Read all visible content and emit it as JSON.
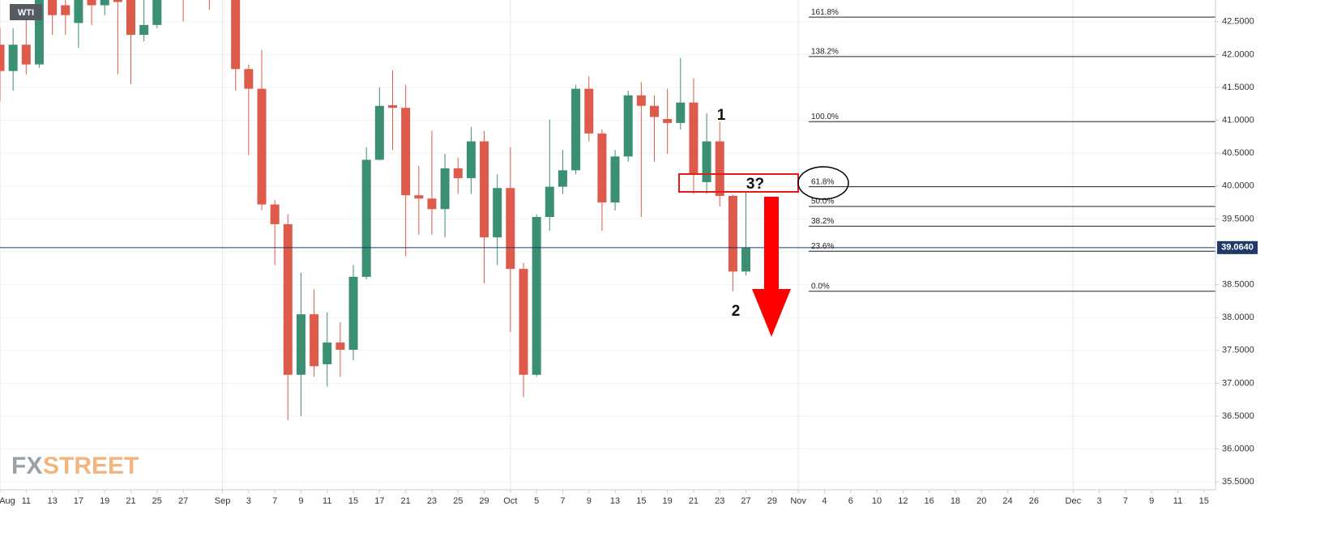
{
  "chart_data": {
    "type": "candlestick",
    "title": "WTI",
    "logo": [
      "FX",
      "STREET"
    ],
    "categories": [
      "Aug",
      null,
      "11",
      null,
      "13",
      null,
      "17",
      null,
      "19",
      null,
      "21",
      null,
      "25",
      null,
      "27",
      null,
      null,
      "Sep",
      null,
      "3",
      null,
      "7",
      null,
      "9",
      null,
      "11",
      null,
      "15",
      null,
      "17",
      null,
      "21",
      null,
      "23",
      null,
      "25",
      null,
      "29",
      null,
      "Oct",
      null,
      "5",
      null,
      "7",
      null,
      "9",
      null,
      "13",
      null,
      "15",
      null,
      "19",
      null,
      "21",
      null,
      "23",
      null,
      "27",
      null,
      "29",
      null,
      "Nov",
      null,
      "4",
      null,
      "6",
      null,
      "10",
      null,
      "12",
      null,
      "16",
      null,
      "18",
      null,
      "20",
      null,
      "24",
      null,
      "26",
      null,
      null,
      "Dec",
      null,
      "3",
      null,
      "7",
      null,
      "9",
      null,
      "11",
      null,
      "15"
    ],
    "series": {
      "open": [
        42.15,
        41.75,
        42.15,
        41.85,
        43.0,
        42.75,
        42.48,
        42.9,
        42.75,
        42.9,
        43.0,
        42.3,
        42.45,
        null,
        43.2,
        null,
        43.1,
        null,
        43.2,
        41.78,
        41.48,
        39.72,
        39.42,
        37.13,
        38.05,
        37.29,
        37.62,
        37.51,
        38.62,
        40.4,
        41.23,
        41.19,
        39.86,
        39.81,
        39.65,
        40.27,
        40.12,
        40.68,
        39.22,
        39.97,
        38.74,
        37.13,
        39.53,
        39.99,
        40.24,
        41.48,
        40.8,
        39.75,
        40.45,
        41.38,
        41.22,
        41.02,
        40.96,
        41.27,
        40.06,
        40.68,
        39.85,
        38.7,
        null,
        null,
        null,
        null,
        null,
        null,
        null,
        null,
        null,
        null,
        null,
        null,
        null,
        null,
        null,
        null,
        null,
        null,
        null,
        null,
        null,
        null,
        null,
        null,
        null,
        null,
        null,
        null,
        null,
        null,
        null,
        null,
        null,
        null,
        null
      ],
      "high": [
        42.4,
        42.4,
        42.59,
        43.1,
        43.1,
        43.0,
        43.2,
        43.1,
        43.0,
        43.1,
        43.1,
        42.9,
        43.1,
        null,
        43.4,
        null,
        43.3,
        null,
        43.3,
        41.85,
        42.07,
        39.79,
        39.57,
        38.68,
        38.43,
        38.08,
        37.93,
        38.8,
        40.59,
        41.5,
        41.76,
        41.54,
        40.31,
        40.84,
        40.49,
        40.43,
        40.9,
        40.84,
        40.18,
        40.59,
        38.83,
        39.57,
        41.01,
        40.55,
        41.54,
        41.67,
        40.86,
        40.55,
        41.45,
        41.58,
        41.38,
        41.48,
        41.95,
        41.64,
        41.11,
        40.98,
        39.87,
        39.9,
        null,
        null,
        null,
        null,
        null,
        null,
        null,
        null,
        null,
        null,
        null,
        null,
        null,
        null,
        null,
        null,
        null,
        null,
        null,
        null,
        null,
        null,
        null,
        null,
        null,
        null,
        null,
        null,
        null,
        null,
        null,
        null,
        null,
        null,
        null
      ],
      "low": [
        41.29,
        41.45,
        41.7,
        41.8,
        42.3,
        42.3,
        42.1,
        42.45,
        42.6,
        41.7,
        41.55,
        42.2,
        42.4,
        null,
        42.5,
        null,
        42.68,
        null,
        41.45,
        40.47,
        39.63,
        38.8,
        36.44,
        36.5,
        37.1,
        36.95,
        37.1,
        37.35,
        38.58,
        40.39,
        40.55,
        38.93,
        39.26,
        39.26,
        39.22,
        39.88,
        39.88,
        38.52,
        38.8,
        37.78,
        36.79,
        37.1,
        39.32,
        39.88,
        40.18,
        40.68,
        39.32,
        39.63,
        40.37,
        39.53,
        40.37,
        40.49,
        40.86,
        39.88,
        39.88,
        39.69,
        38.4,
        38.64,
        null,
        null,
        null,
        null,
        null,
        null,
        null,
        null,
        null,
        null,
        null,
        null,
        null,
        null,
        null,
        null,
        null,
        null,
        null,
        null,
        null,
        null,
        null,
        null,
        null,
        null,
        null,
        null,
        null,
        null,
        null,
        null,
        null,
        null,
        null
      ],
      "close": [
        41.75,
        42.15,
        41.85,
        42.95,
        42.6,
        42.6,
        43.0,
        42.75,
        42.85,
        42.8,
        42.3,
        42.45,
        42.95,
        null,
        43.0,
        null,
        43.0,
        null,
        41.78,
        41.48,
        39.72,
        39.42,
        37.13,
        38.05,
        37.26,
        37.62,
        37.51,
        38.62,
        40.4,
        41.22,
        41.19,
        39.86,
        39.81,
        39.65,
        40.27,
        40.12,
        40.68,
        39.22,
        39.97,
        38.74,
        37.13,
        39.53,
        39.99,
        40.24,
        41.48,
        40.8,
        39.75,
        40.45,
        41.38,
        41.22,
        41.05,
        40.96,
        41.27,
        40.18,
        40.68,
        39.85,
        38.7,
        39.06,
        null,
        null,
        null,
        null,
        null,
        null,
        null,
        null,
        null,
        null,
        null,
        null,
        null,
        null,
        null,
        null,
        null,
        null,
        null,
        null,
        null,
        null,
        null,
        null,
        null,
        null,
        null,
        null,
        null,
        null,
        null,
        null,
        null,
        null,
        null
      ]
    },
    "up_color": "#3b8f73",
    "down_color": "#de5a4b",
    "ylim": [
      35.38,
      42.83
    ],
    "yticks": [
      {
        "value": 35.5,
        "label": "35.5000"
      },
      {
        "value": 36,
        "label": "36.0000"
      },
      {
        "value": 36.5,
        "label": "36.5000"
      },
      {
        "value": 37,
        "label": "37.0000"
      },
      {
        "value": 37.5,
        "label": "37.5000"
      },
      {
        "value": 38,
        "label": "38.0000"
      },
      {
        "value": 38.5,
        "label": "38.5000"
      },
      {
        "value": 39,
        "label": "39.0000"
      },
      {
        "value": 39.5,
        "label": "39.5000"
      },
      {
        "value": 40,
        "label": "40.0000"
      },
      {
        "value": 40.5,
        "label": "40.5000"
      },
      {
        "value": 41,
        "label": "41.0000"
      },
      {
        "value": 41.5,
        "label": "41.5000"
      },
      {
        "value": 42,
        "label": "42.0000"
      },
      {
        "value": 42.5,
        "label": "42.5000"
      }
    ],
    "grid": true,
    "last_price": {
      "value": 39.064,
      "label": "39.0640"
    },
    "fib_levels": [
      {
        "label": "161.8%",
        "value": 42.57
      },
      {
        "label": "138.2%",
        "value": 41.97
      },
      {
        "label": "100.0%",
        "value": 40.98
      },
      {
        "label": "61.8%",
        "value": 39.99
      },
      {
        "label": "50.0%",
        "value": 39.69
      },
      {
        "label": "38.2%",
        "value": 39.39
      },
      {
        "label": "23.6%",
        "value": 39.01
      },
      {
        "label": "0.0%",
        "value": 38.4
      }
    ],
    "annotations": [
      "1",
      "2",
      "3?"
    ]
  }
}
